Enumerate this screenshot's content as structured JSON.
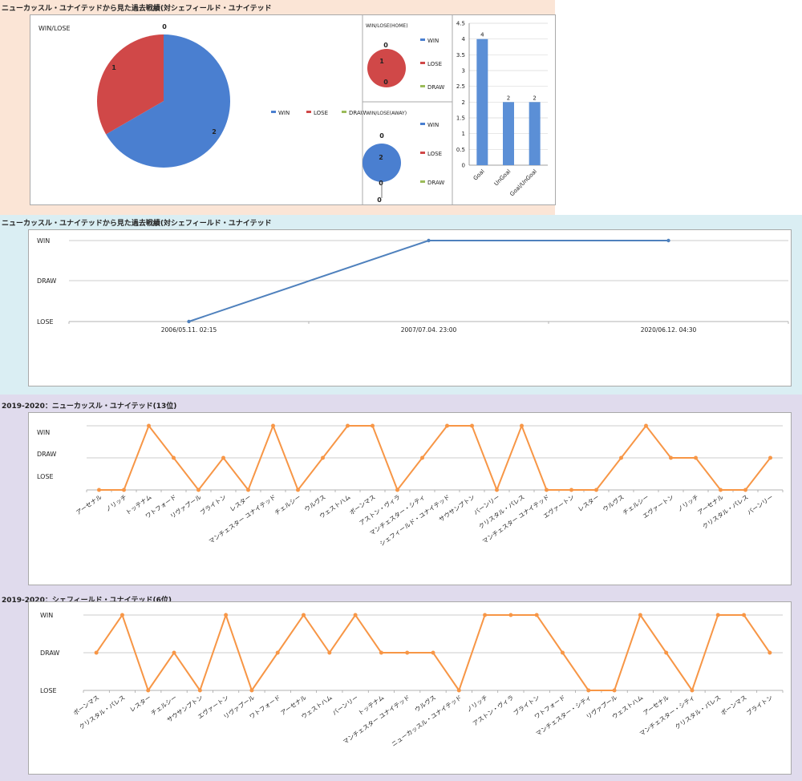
{
  "section1": {
    "title": "ニューカッスル・ユナイテッドから見た過去戦績(対シェフィールド・ユナイテッド",
    "colors": {
      "win": "#4a7fd0",
      "lose": "#d04848",
      "draw": "#9bbb59",
      "bar": "#5b8fd6"
    },
    "chart_data": [
      {
        "type": "pie",
        "title": "WIN/LOSE",
        "labels": [
          "WIN",
          "LOSE",
          "DRAW"
        ],
        "values": [
          2,
          1,
          0
        ],
        "legend": "right"
      },
      {
        "type": "pie",
        "title": "WIN/LOSE(HOME)",
        "labels": [
          "WIN",
          "LOSE",
          "DRAW"
        ],
        "values": [
          0,
          1,
          0
        ],
        "legend": "right"
      },
      {
        "type": "pie",
        "title": "WIN/LOSE(AWAY)",
        "labels": [
          "WIN",
          "LOSE",
          "DRAW"
        ],
        "values": [
          2,
          0,
          0
        ],
        "legend": "right"
      },
      {
        "type": "bar",
        "categories": [
          "Goal",
          "UnGoal",
          "Goal/UnGoal"
        ],
        "values": [
          4,
          2,
          2
        ],
        "ylim": [
          0,
          4.5
        ],
        "yticks": [
          "0",
          "0.5",
          "1",
          "1.5",
          "2",
          "2.5",
          "3",
          "3.5",
          "4",
          "4.5"
        ],
        "grid": true
      }
    ]
  },
  "section2": {
    "title": "ニューカッスル・ユナイテッドから見た過去戦績(対シェフィールド・ユナイテッド",
    "chart_data": {
      "type": "line",
      "categories": [
        "2006/05.11. 02:15",
        "2007/07.04. 23:00",
        "2020/06.12. 04:30"
      ],
      "values": [
        "LOSE",
        "WIN",
        "WIN"
      ],
      "y_levels": [
        "LOSE",
        "DRAW",
        "WIN"
      ],
      "color": "#4f81bd",
      "grid": true
    }
  },
  "section3": {
    "title": "2019-2020：ニューカッスル・ユナイテッド(13位)",
    "chart_data": {
      "type": "line",
      "categories": [
        "アーセナル",
        "ノリッチ",
        "トッテナム",
        "ワトフォード",
        "リヴァプール",
        "ブライトン",
        "レスター",
        "マンチェスター ユナイテッド",
        "チェルシー",
        "ウルヴス",
        "ウェストハム",
        "ボーンマス",
        "アストン・ヴィラ",
        "マンチェスター・シティ",
        "シェフィールド・ユナイテッド",
        "サウサンプトン",
        "バーンリー",
        "クリスタル・パレス",
        "マンチェスター ユナイテッド",
        "エヴァートン",
        "レスター",
        "ウルヴス",
        "チェルシー",
        "エヴァートン",
        "ノリッチ",
        "アーセナル",
        "クリスタル・パレス",
        "バーンリー"
      ],
      "values": [
        "-",
        "-",
        "WIN",
        "DRAW",
        "-",
        "DRAW",
        "-",
        "WIN",
        "-",
        "DRAW",
        "WIN",
        "WIN",
        "-",
        "DRAW",
        "WIN",
        "WIN",
        "-",
        "WIN",
        "-",
        "-",
        "-",
        "DRAW",
        "WIN",
        "DRAW",
        "DRAW",
        "-",
        "-",
        "DRAW"
      ],
      "y_levels": [
        "-",
        "LOSE",
        "DRAW",
        "WIN"
      ],
      "color": "#f79646",
      "grid": true
    }
  },
  "section4": {
    "title": "2019-2020：シェフィールド・ユナイテッド(6位)",
    "chart_data": {
      "type": "line",
      "categories": [
        "ボーンマス",
        "クリスタル・パレス",
        "レスター",
        "チェルシー",
        "サウサンプトン",
        "エヴァートン",
        "リヴァプール",
        "ワトフォード",
        "アーセナル",
        "ウェストハム",
        "バーンリー",
        "トッテナム",
        "マンチェスター ユナイテッド",
        "ウルヴス",
        "ニューカッスル・ユナイテッド",
        "ノリッチ",
        "アストン・ヴィラ",
        "ブライトン",
        "ワトフォード",
        "マンチェスター・シティ",
        "リヴァプール",
        "ウェストハム",
        "アーセナル",
        "マンチェスター・シティ",
        "クリスタル・パレス",
        "ボーンマス",
        "ブライトン"
      ],
      "values": [
        "DRAW",
        "WIN",
        "LOSE",
        "DRAW",
        "LOSE",
        "WIN",
        "LOSE",
        "DRAW",
        "WIN",
        "DRAW",
        "WIN",
        "DRAW",
        "DRAW",
        "DRAW",
        "LOSE",
        "WIN",
        "WIN",
        "WIN",
        "DRAW",
        "LOSE",
        "LOSE",
        "WIN",
        "DRAW",
        "LOSE",
        "WIN",
        "WIN",
        "DRAW"
      ],
      "y_levels": [
        "LOSE",
        "DRAW",
        "WIN"
      ],
      "color": "#f79646",
      "grid": true
    }
  }
}
